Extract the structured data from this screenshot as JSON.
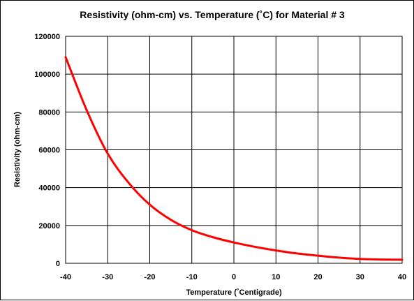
{
  "chart_data": {
    "type": "line",
    "title": "Resistivity (ohm-cm) vs. Temperature (˚C) for Material # 3",
    "xlabel": "Temperature (˚Centigrade)",
    "ylabel": "Resistivity (ohm-cm)",
    "xlim": [
      -40,
      40
    ],
    "ylim": [
      0,
      120000
    ],
    "x_ticks": [
      -40,
      -30,
      -20,
      -10,
      0,
      10,
      20,
      30,
      40
    ],
    "y_ticks": [
      0,
      20000,
      40000,
      60000,
      80000,
      100000,
      120000
    ],
    "x_tick_labels": [
      "-40",
      "-30",
      "-20",
      "-10",
      "0",
      "10",
      "20",
      "30",
      "40"
    ],
    "y_tick_labels": [
      "0",
      "20000",
      "40000",
      "60000",
      "80000",
      "100000",
      "120000"
    ],
    "grid": true,
    "series": [
      {
        "color": "#ff0000",
        "x": [
          -40,
          -35,
          -30,
          -25,
          -20,
          -15,
          -10,
          -5,
          0,
          5,
          10,
          15,
          20,
          25,
          30,
          35,
          40
        ],
        "values": [
          109000,
          81000,
          58000,
          42500,
          31000,
          23000,
          17500,
          13800,
          11000,
          8700,
          6800,
          5200,
          4000,
          3000,
          2300,
          2000,
          1900
        ]
      }
    ]
  }
}
